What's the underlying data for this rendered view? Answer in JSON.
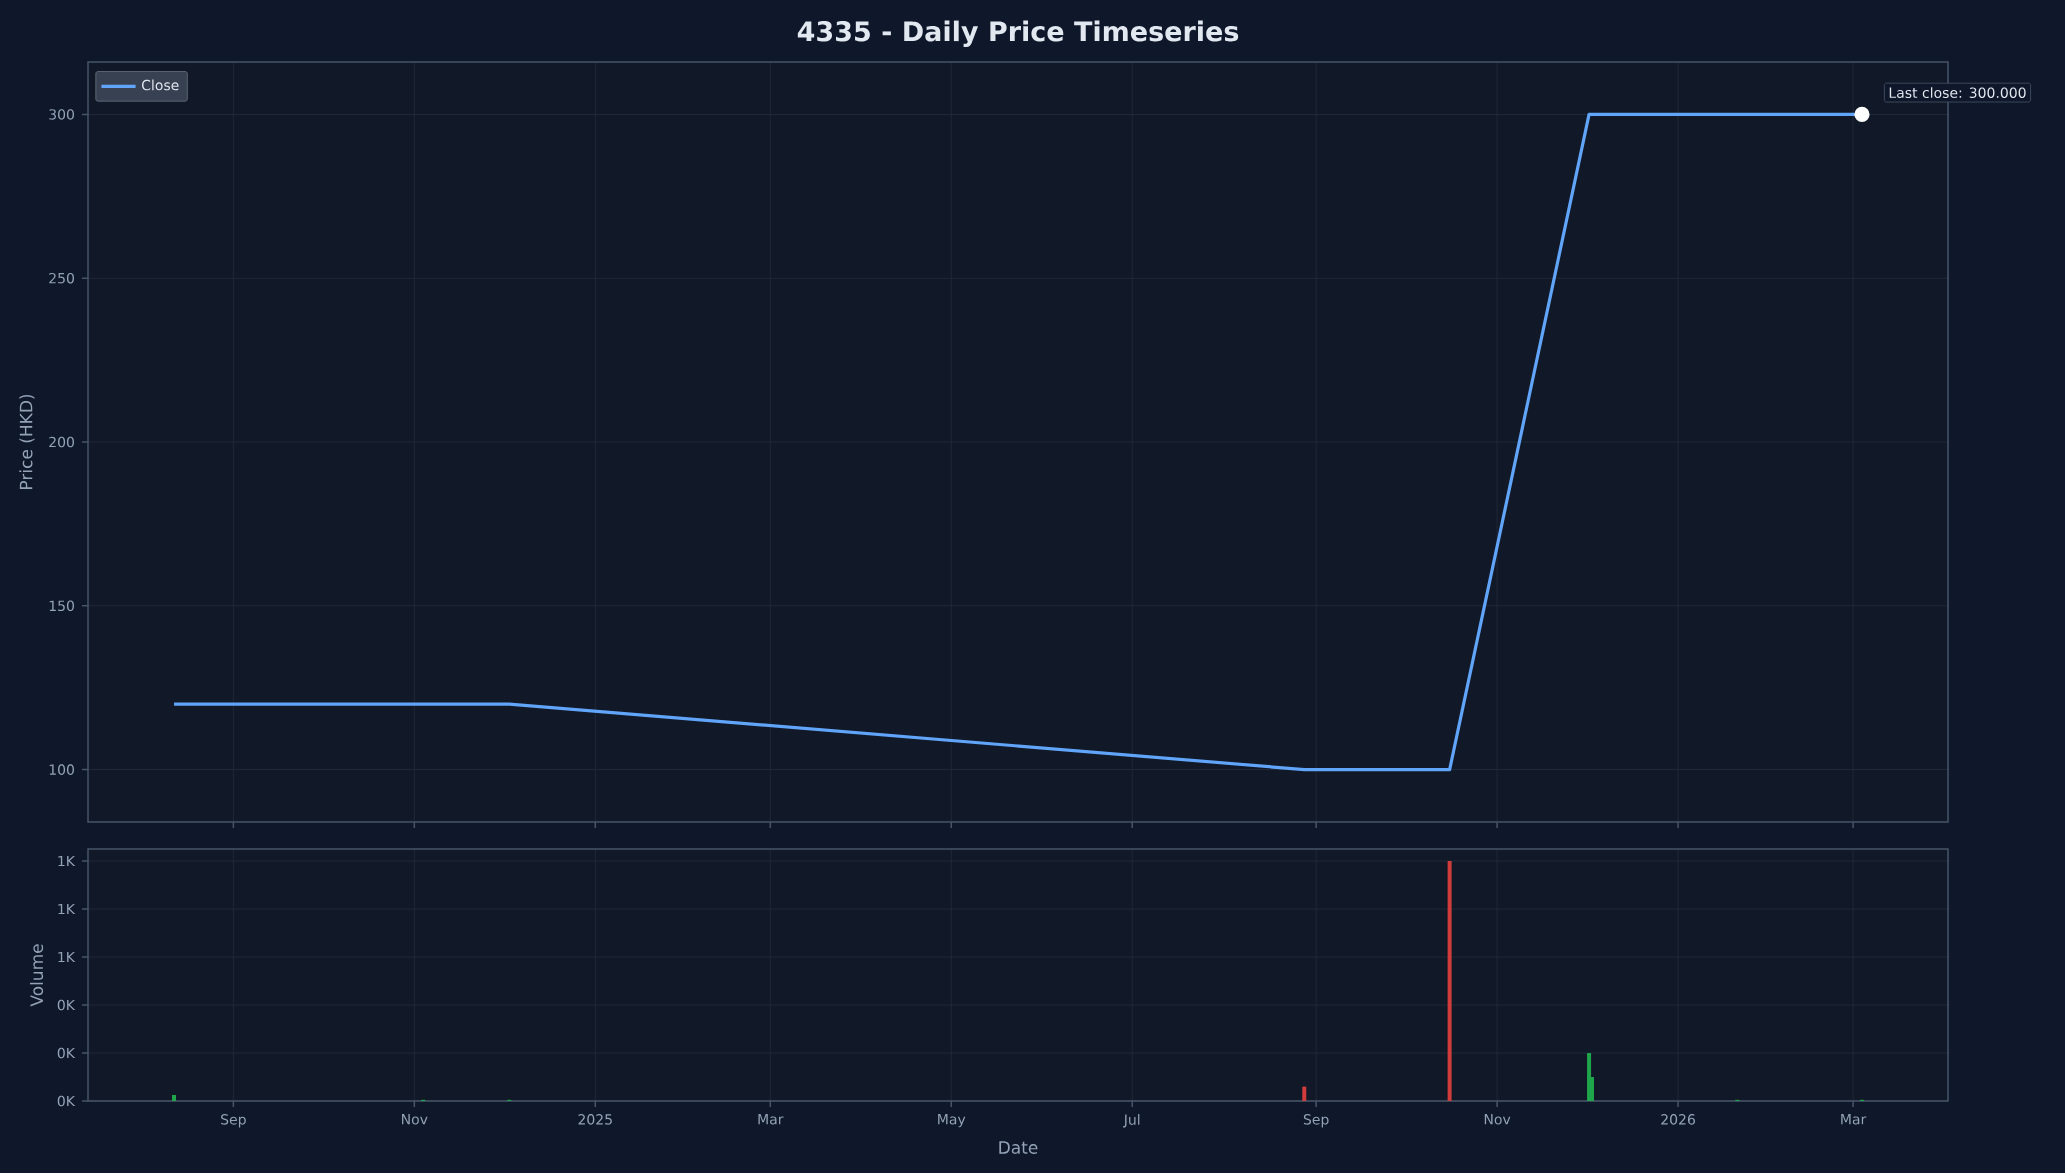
{
  "chart_data": [
    {
      "type": "line",
      "title": "4335 - Daily Price Timeseries",
      "ylabel": "Price (HKD)",
      "series": [
        {
          "name": "Close",
          "color": "#60a5fa",
          "x": [
            "2024-08-12",
            "2024-12-03",
            "2025-08-28",
            "2025-10-16",
            "2025-12-02",
            "2026-03-04"
          ],
          "values": [
            120,
            120,
            100,
            100,
            300,
            300
          ]
        },
        {
          "type": "scatter",
          "marker": "circle",
          "color": "#ffffff",
          "x": [
            "2026-03-04"
          ],
          "values": [
            300
          ]
        }
      ],
      "annotations": [
        {
          "text": "Last close: 300.000",
          "x": "2026-03-04",
          "y": 300
        }
      ],
      "xlim": [
        "2024-07-14",
        "2026-04-02"
      ],
      "ylim": [
        84,
        316
      ],
      "xticks": [
        {
          "value": "2024-09-01",
          "label": null
        },
        {
          "value": "2024-11-01",
          "label": null
        },
        {
          "value": "2025-01-01",
          "label": null
        },
        {
          "value": "2025-03-01",
          "label": null
        },
        {
          "value": "2025-05-01",
          "label": null
        },
        {
          "value": "2025-07-01",
          "label": null
        },
        {
          "value": "2025-09-01",
          "label": null
        },
        {
          "value": "2025-11-01",
          "label": null
        },
        {
          "value": "2026-01-01",
          "label": null
        },
        {
          "value": "2026-03-01",
          "label": null
        }
      ],
      "yticks": [
        100,
        150,
        200,
        250,
        300
      ],
      "grid": true,
      "legend": "top left",
      "tick_labels": "y"
    },
    {
      "type": "bar",
      "xlabel": "Date",
      "ylabel": "Volume",
      "x": [
        "2024-08-12",
        "2024-11-04",
        "2024-12-03",
        "2025-08-28",
        "2025-10-16",
        "2025-12-02",
        "2025-12-03",
        "2026-01-21",
        "2026-03-04"
      ],
      "values": [
        25,
        5,
        5,
        60,
        1000,
        200,
        100,
        5,
        5
      ],
      "colors": [
        "#1fa64b",
        "#1fa64b",
        "#1fa64b",
        "#d03c3c",
        "#d03c3c",
        "#1fa64b",
        "#1fa64b",
        "#1fa64b",
        "#1fa64b"
      ],
      "xlim": [
        "2024-07-14",
        "2026-04-02"
      ],
      "ylim": [
        0,
        1050
      ],
      "xticks": [
        {
          "value": "2024-09-01",
          "label": "Sep"
        },
        {
          "value": "2024-11-01",
          "label": "Nov"
        },
        {
          "value": "2025-01-01",
          "label": "2025"
        },
        {
          "value": "2025-03-01",
          "label": "Mar"
        },
        {
          "value": "2025-05-01",
          "label": "May"
        },
        {
          "value": "2025-07-01",
          "label": "Jul"
        },
        {
          "value": "2025-09-01",
          "label": "Sep"
        },
        {
          "value": "2025-11-01",
          "label": "Nov"
        },
        {
          "value": "2026-01-01",
          "label": "2026"
        },
        {
          "value": "2026-03-01",
          "label": "Mar"
        }
      ],
      "yticks": [
        {
          "value": 0,
          "label": "0K"
        },
        {
          "value": 200,
          "label": "0K"
        },
        {
          "value": 400,
          "label": "0K"
        },
        {
          "value": 600,
          "label": "1K"
        },
        {
          "value": 800,
          "label": "1K"
        },
        {
          "value": 1000,
          "label": "1K"
        }
      ],
      "grid": true
    }
  ]
}
